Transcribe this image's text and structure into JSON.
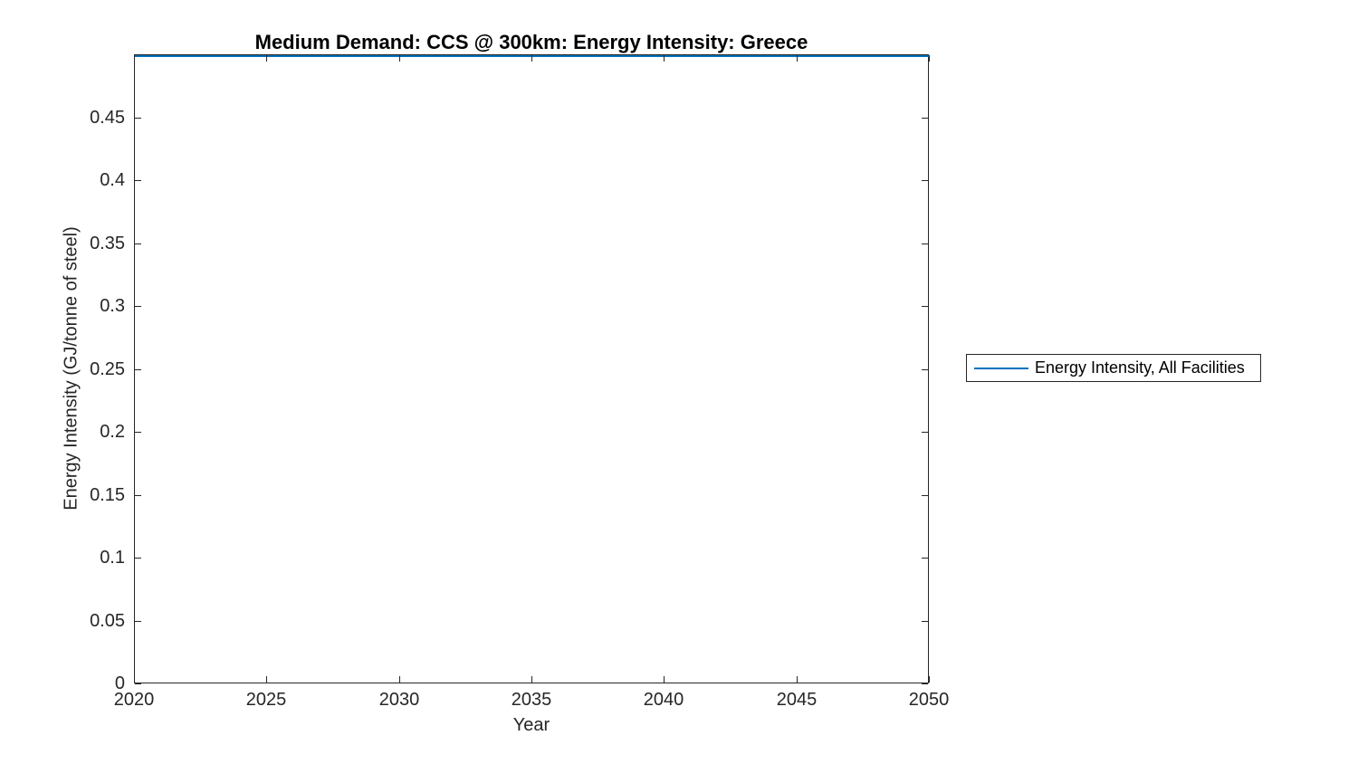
{
  "figure": {
    "background": "#ffffff",
    "axis_color": "#262626",
    "text_color": "#262626",
    "title_color": "#000000"
  },
  "chart_data": {
    "type": "line",
    "title": "Medium Demand: CCS @ 300km: Energy Intensity: Greece",
    "xlabel": "Year",
    "ylabel": "Energy Intensity (GJ/tonne of steel)",
    "xlim": [
      2020,
      2050
    ],
    "ylim": [
      0,
      0.5
    ],
    "xtick_labels": [
      "2020",
      "2025",
      "2030",
      "2035",
      "2040",
      "2045",
      "2050"
    ],
    "ytick_labels": [
      "0",
      "0.05",
      "0.1",
      "0.15",
      "0.2",
      "0.25",
      "0.3",
      "0.35",
      "0.4",
      "0.45"
    ],
    "grid": false,
    "box": true,
    "legend": {
      "position": "right-outside",
      "entries": [
        {
          "label": "Energy Intensity, All Facilities",
          "color": "#0072BD"
        }
      ]
    },
    "series": [
      {
        "name": "Energy Intensity, All Facilities",
        "color": "#0072BD",
        "x": [
          2020,
          2025,
          2030,
          2035,
          2040,
          2045,
          2050
        ],
        "y": [
          0.5,
          0.5,
          0.5,
          0.5,
          0.5,
          0.5,
          0.5
        ]
      }
    ]
  }
}
